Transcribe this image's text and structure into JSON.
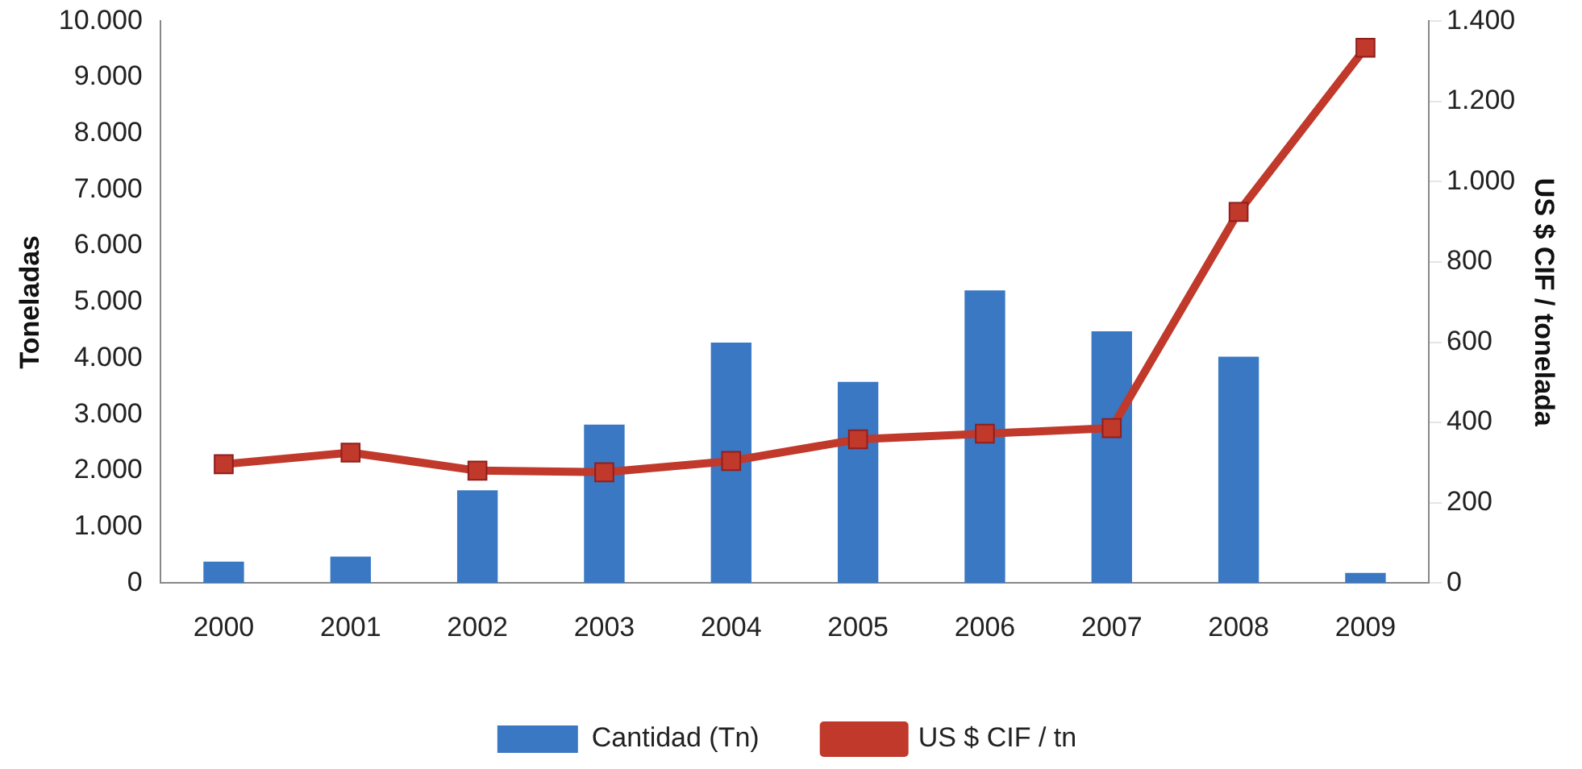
{
  "chart_data": {
    "type": "bar",
    "categories": [
      "2000",
      "2001",
      "2002",
      "2003",
      "2004",
      "2005",
      "2006",
      "2007",
      "2008",
      "2009"
    ],
    "series": [
      {
        "name": "Cantidad (Tn)",
        "color": "#3a78c4",
        "values": [
          380,
          470,
          1650,
          2820,
          4280,
          3580,
          5210,
          4480,
          4030,
          180
        ]
      },
      {
        "name": "US $ CIF / tn",
        "type": "line",
        "axis": "y2",
        "color": "#c0392b",
        "marker": "square",
        "values": [
          296,
          325,
          280,
          276,
          304,
          358,
          372,
          386,
          925,
          1334
        ]
      }
    ],
    "ylabel": "Toneladas",
    "y2label": "US $ CIF / tonelada",
    "ylim": [
      0,
      10000
    ],
    "yticks": [
      {
        "value": 0,
        "label": "0"
      },
      {
        "value": 1000,
        "label": "1.000"
      },
      {
        "value": 2000,
        "label": "2.000"
      },
      {
        "value": 3000,
        "label": "3.000"
      },
      {
        "value": 4000,
        "label": "4.000"
      },
      {
        "value": 5000,
        "label": "5.000"
      },
      {
        "value": 6000,
        "label": "6.000"
      },
      {
        "value": 7000,
        "label": "7.000"
      },
      {
        "value": 8000,
        "label": "8.000"
      },
      {
        "value": 9000,
        "label": "9.000"
      },
      {
        "value": 10000,
        "label": "10.000"
      }
    ],
    "y2lim": [
      0,
      1400
    ],
    "y2ticks": [
      0,
      200,
      400,
      600,
      800,
      {
        "value": 1000,
        "label": "1.000"
      },
      {
        "value": 1200,
        "label": "1.200"
      },
      {
        "value": 1400,
        "label": "1.400"
      }
    ],
    "legend": "bottom",
    "grid": false
  }
}
